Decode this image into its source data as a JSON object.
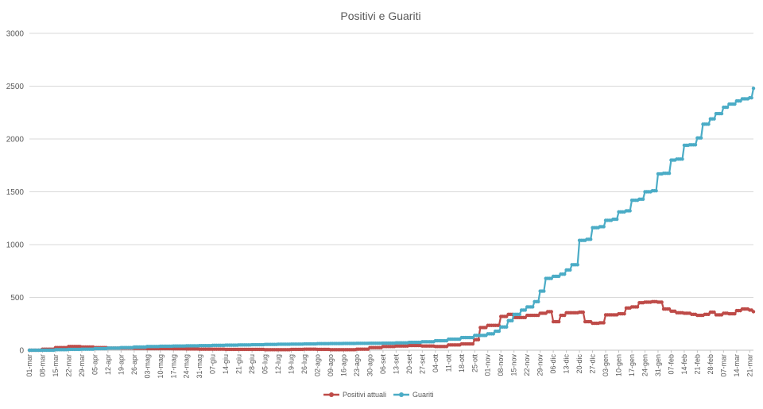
{
  "chart_data": {
    "type": "line",
    "title": "Positivi e Guariti",
    "xlabel": "",
    "ylabel": "",
    "ylim": [
      0,
      3000
    ],
    "yticks": [
      0,
      500,
      1000,
      1500,
      2000,
      2500,
      3000
    ],
    "grid": true,
    "legend_position": "bottom",
    "x_start": "01-mar",
    "x_end": "21-mar",
    "xtick_labels": [
      "01-mar",
      "08-mar",
      "15-mar",
      "22-mar",
      "29-mar",
      "05-apr",
      "12-apr",
      "19-apr",
      "26-apr",
      "03-mag",
      "10-mag",
      "17-mag",
      "24-mag",
      "31-mag",
      "07-giu",
      "14-giu",
      "21-giu",
      "28-giu",
      "05-lug",
      "12-lug",
      "19-lug",
      "26-lug",
      "02-ago",
      "09-ago",
      "16-ago",
      "23-ago",
      "30-ago",
      "06-set",
      "13-set",
      "20-set",
      "27-set",
      "04-ott",
      "11-ott",
      "18-ott",
      "25-ott",
      "01-nov",
      "08-nov",
      "15-nov",
      "22-nov",
      "29-nov",
      "06-dic",
      "13-dic",
      "20-dic",
      "27-dic",
      "03-gen",
      "10-gen",
      "17-gen",
      "24-gen",
      "31-gen",
      "07-feb",
      "14-feb",
      "21-feb",
      "28-feb",
      "07-mar",
      "14-mar",
      "21-mar"
    ],
    "series": [
      {
        "name": "Positivi attuali",
        "color": "#be4b48",
        "points": [
          [
            "01-mar",
            0
          ],
          [
            "08-mar",
            10
          ],
          [
            "15-mar",
            25
          ],
          [
            "22-mar",
            35
          ],
          [
            "29-mar",
            30
          ],
          [
            "05-apr",
            25
          ],
          [
            "12-apr",
            20
          ],
          [
            "19-apr",
            20
          ],
          [
            "26-apr",
            18
          ],
          [
            "03-mag",
            15
          ],
          [
            "10-mag",
            15
          ],
          [
            "17-mag",
            14
          ],
          [
            "24-mag",
            12
          ],
          [
            "31-mag",
            10
          ],
          [
            "07-giu",
            10
          ],
          [
            "14-giu",
            8
          ],
          [
            "21-giu",
            8
          ],
          [
            "28-giu",
            8
          ],
          [
            "05-lug",
            5
          ],
          [
            "12-lug",
            5
          ],
          [
            "19-lug",
            8
          ],
          [
            "26-lug",
            10
          ],
          [
            "02-ago",
            8
          ],
          [
            "09-ago",
            5
          ],
          [
            "16-ago",
            5
          ],
          [
            "23-ago",
            10
          ],
          [
            "30-ago",
            25
          ],
          [
            "06-set",
            35
          ],
          [
            "13-set",
            40
          ],
          [
            "20-set",
            45
          ],
          [
            "27-set",
            40
          ],
          [
            "04-ott",
            35
          ],
          [
            "11-ott",
            50
          ],
          [
            "18-ott",
            60
          ],
          [
            "25-ott",
            100
          ],
          [
            "28-ott",
            215
          ],
          [
            "01-nov",
            235
          ],
          [
            "08-nov",
            320
          ],
          [
            "12-nov",
            340
          ],
          [
            "15-nov",
            310
          ],
          [
            "22-nov",
            330
          ],
          [
            "29-nov",
            350
          ],
          [
            "03-dic",
            365
          ],
          [
            "06-dic",
            270
          ],
          [
            "10-dic",
            330
          ],
          [
            "13-dic",
            355
          ],
          [
            "20-dic",
            360
          ],
          [
            "23-dic",
            270
          ],
          [
            "27-dic",
            255
          ],
          [
            "31-dic",
            260
          ],
          [
            "03-gen",
            335
          ],
          [
            "10-gen",
            345
          ],
          [
            "14-gen",
            400
          ],
          [
            "17-gen",
            410
          ],
          [
            "21-gen",
            450
          ],
          [
            "24-gen",
            455
          ],
          [
            "28-gen",
            460
          ],
          [
            "31-gen",
            455
          ],
          [
            "03-feb",
            390
          ],
          [
            "07-feb",
            370
          ],
          [
            "10-feb",
            355
          ],
          [
            "14-feb",
            350
          ],
          [
            "18-feb",
            340
          ],
          [
            "21-feb",
            330
          ],
          [
            "25-feb",
            340
          ],
          [
            "28-feb",
            360
          ],
          [
            "03-mar",
            335
          ],
          [
            "07-mar",
            350
          ],
          [
            "10-mar",
            345
          ],
          [
            "14-mar",
            375
          ],
          [
            "17-mar",
            390
          ],
          [
            "21-mar",
            380
          ],
          [
            "23-mar",
            365
          ]
        ]
      },
      {
        "name": "Guariti",
        "color": "#4bacc6",
        "points": [
          [
            "01-mar",
            0
          ],
          [
            "08-mar",
            0
          ],
          [
            "15-mar",
            5
          ],
          [
            "22-mar",
            8
          ],
          [
            "29-mar",
            10
          ],
          [
            "05-apr",
            15
          ],
          [
            "12-apr",
            20
          ],
          [
            "19-apr",
            25
          ],
          [
            "26-apr",
            30
          ],
          [
            "03-mag",
            35
          ],
          [
            "10-mag",
            38
          ],
          [
            "17-mag",
            40
          ],
          [
            "24-mag",
            42
          ],
          [
            "31-mag",
            44
          ],
          [
            "07-giu",
            46
          ],
          [
            "14-giu",
            48
          ],
          [
            "21-giu",
            50
          ],
          [
            "28-giu",
            52
          ],
          [
            "05-lug",
            55
          ],
          [
            "12-lug",
            57
          ],
          [
            "19-lug",
            58
          ],
          [
            "26-lug",
            60
          ],
          [
            "02-ago",
            62
          ],
          [
            "09-ago",
            63
          ],
          [
            "16-ago",
            64
          ],
          [
            "23-ago",
            65
          ],
          [
            "30-ago",
            66
          ],
          [
            "06-set",
            67
          ],
          [
            "13-set",
            70
          ],
          [
            "20-set",
            75
          ],
          [
            "27-set",
            80
          ],
          [
            "04-ott",
            90
          ],
          [
            "11-ott",
            105
          ],
          [
            "18-ott",
            120
          ],
          [
            "25-ott",
            140
          ],
          [
            "01-nov",
            155
          ],
          [
            "05-nov",
            180
          ],
          [
            "08-nov",
            220
          ],
          [
            "12-nov",
            280
          ],
          [
            "15-nov",
            340
          ],
          [
            "19-nov",
            380
          ],
          [
            "22-nov",
            410
          ],
          [
            "26-nov",
            460
          ],
          [
            "29-nov",
            560
          ],
          [
            "02-dic",
            680
          ],
          [
            "06-dic",
            700
          ],
          [
            "10-dic",
            720
          ],
          [
            "13-dic",
            760
          ],
          [
            "16-dic",
            810
          ],
          [
            "20-dic",
            1040
          ],
          [
            "24-dic",
            1050
          ],
          [
            "27-dic",
            1160
          ],
          [
            "31-dic",
            1170
          ],
          [
            "03-gen",
            1230
          ],
          [
            "07-gen",
            1240
          ],
          [
            "10-gen",
            1310
          ],
          [
            "14-gen",
            1320
          ],
          [
            "17-gen",
            1420
          ],
          [
            "21-gen",
            1430
          ],
          [
            "24-gen",
            1500
          ],
          [
            "28-gen",
            1510
          ],
          [
            "31-gen",
            1670
          ],
          [
            "03-feb",
            1675
          ],
          [
            "07-feb",
            1800
          ],
          [
            "10-feb",
            1810
          ],
          [
            "14-feb",
            1940
          ],
          [
            "17-feb",
            1945
          ],
          [
            "21-feb",
            2010
          ],
          [
            "24-feb",
            2140
          ],
          [
            "28-feb",
            2190
          ],
          [
            "03-mar",
            2240
          ],
          [
            "07-mar",
            2300
          ],
          [
            "10-mar",
            2330
          ],
          [
            "14-mar",
            2360
          ],
          [
            "17-mar",
            2380
          ],
          [
            "21-mar",
            2390
          ],
          [
            "23-mar",
            2480
          ]
        ]
      }
    ]
  }
}
